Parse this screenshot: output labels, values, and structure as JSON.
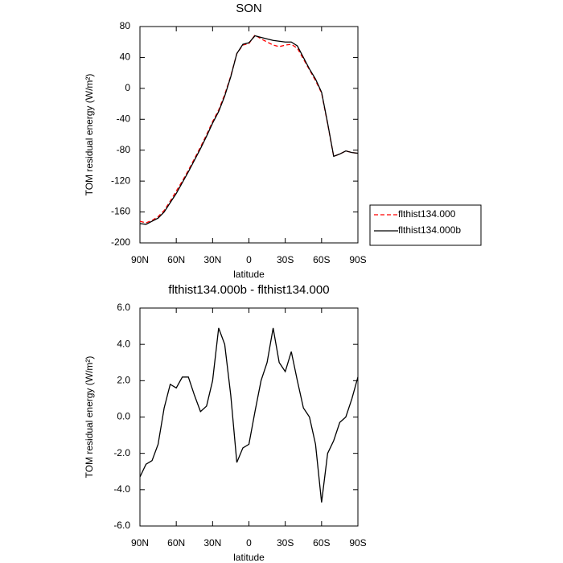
{
  "chart_data": [
    {
      "type": "line",
      "title": "SON",
      "xlabel": "latitude",
      "ylabel": "TOM residual energy (W/m²)",
      "x": [
        90,
        85,
        80,
        75,
        70,
        65,
        60,
        55,
        50,
        45,
        40,
        35,
        30,
        25,
        20,
        15,
        10,
        5,
        0,
        -5,
        -10,
        -15,
        -20,
        -25,
        -30,
        -35,
        -40,
        -45,
        -50,
        -55,
        -60,
        -65,
        -70,
        -75,
        -80,
        -85,
        -90
      ],
      "xlim": [
        90,
        -90
      ],
      "xticks": [
        {
          "value": 90,
          "label": "90N"
        },
        {
          "value": 60,
          "label": "60N"
        },
        {
          "value": 30,
          "label": "30N"
        },
        0,
        {
          "value": -30,
          "label": "30S"
        },
        {
          "value": -60,
          "label": "60S"
        },
        {
          "value": -90,
          "label": "90S"
        }
      ],
      "ylim": [
        -200,
        80
      ],
      "yticks": [
        80,
        40,
        0,
        -40,
        -80,
        -120,
        -160,
        -200
      ],
      "legend": "right",
      "series": [
        {
          "name": "flthist134.000",
          "color": "#ff0000",
          "line_style": "dashed",
          "values": [
            -172,
            -174,
            -171,
            -166,
            -158,
            -146,
            -133,
            -120,
            -106,
            -91,
            -76,
            -60,
            -43,
            -28,
            -8,
            16,
            45,
            56,
            58,
            69,
            64,
            60,
            56,
            54,
            56,
            57,
            52,
            38,
            24,
            10,
            -6,
            -46,
            -88,
            -85,
            -81,
            -83,
            -84
          ]
        },
        {
          "name": "flthist134.000b",
          "color": "#000000",
          "line_style": "solid",
          "values": [
            -175,
            -176,
            -172,
            -168,
            -160,
            -148,
            -136,
            -122,
            -108,
            -93,
            -78,
            -62,
            -45,
            -30,
            -10,
            15,
            45,
            57,
            59,
            68,
            66,
            64,
            62,
            61,
            60,
            60,
            55,
            40,
            25,
            12,
            -5,
            -45,
            -88,
            -85,
            -81,
            -83,
            -84
          ]
        }
      ]
    },
    {
      "type": "line",
      "title": "flthist134.000b - flthist134.000",
      "xlabel": "latitude",
      "ylabel": "TOM residual energy (W/m²)",
      "x": [
        90,
        85,
        80,
        75,
        70,
        65,
        60,
        55,
        50,
        45,
        40,
        35,
        30,
        25,
        20,
        15,
        10,
        5,
        0,
        -5,
        -10,
        -15,
        -20,
        -25,
        -30,
        -35,
        -40,
        -45,
        -50,
        -55,
        -60,
        -65,
        -70,
        -75,
        -80,
        -85,
        -90
      ],
      "xlim": [
        90,
        -90
      ],
      "xticks": [
        {
          "value": 90,
          "label": "90N"
        },
        {
          "value": 60,
          "label": "60N"
        },
        {
          "value": 30,
          "label": "30N"
        },
        0,
        {
          "value": -30,
          "label": "30S"
        },
        {
          "value": -60,
          "label": "60S"
        },
        {
          "value": -90,
          "label": "90S"
        }
      ],
      "ylim": [
        -6,
        6
      ],
      "yticks": [
        {
          "value": 6,
          "label": "6.0"
        },
        {
          "value": 4,
          "label": "4.0"
        },
        {
          "value": 2,
          "label": "2.0"
        },
        {
          "value": 0,
          "label": "0.0"
        },
        {
          "value": -2,
          "label": "-2.0"
        },
        {
          "value": -4,
          "label": "-4.0"
        },
        {
          "value": -6,
          "label": "-6.0"
        }
      ],
      "color": "#000000",
      "values": [
        -3.3,
        -2.6,
        -2.4,
        -1.5,
        0.5,
        1.8,
        1.6,
        2.2,
        2.2,
        1.2,
        0.3,
        0.6,
        2.0,
        4.9,
        4.0,
        1.2,
        -2.5,
        -1.7,
        -1.5,
        0.3,
        2.0,
        3.0,
        4.9,
        3.0,
        2.5,
        3.6,
        2.0,
        0.5,
        0.0,
        -1.5,
        -4.7,
        -2.0,
        -1.3,
        -0.3,
        0.0,
        1.0,
        2.2
      ]
    }
  ]
}
